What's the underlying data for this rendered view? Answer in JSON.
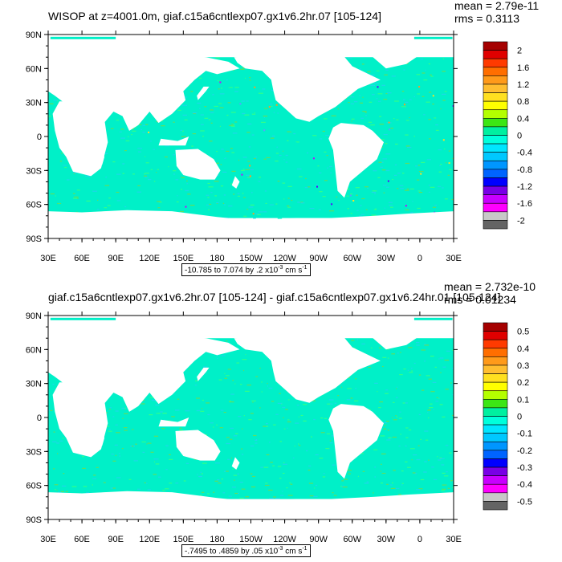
{
  "colors": {
    "land": "#ffffff",
    "ocean_fill": "#00f0c8",
    "noise": [
      "#00f0c8",
      "#5de060",
      "#1ed8e8",
      "#30ff8a"
    ],
    "accents": [
      "#5b9dff",
      "#5d00ff",
      "#ff9a1a",
      "#ffe020",
      "#c800ff"
    ]
  },
  "panels": [
    {
      "title": "WISOP at z=4001.0m, giaf.c15a6cntlexp07.gx1v6.2hr.07 [105-124]",
      "mean_text": "mean = 2.79e-11",
      "rms_text": "rms = 0.3113",
      "range_text": "-10.785 to 7.074 by .2",
      "range_unit": " cm s",
      "y_ticks": [
        "90N",
        "60N",
        "30N",
        "0",
        "30S",
        "60S",
        "90S"
      ],
      "x_ticks": [
        "30E",
        "60E",
        "90E",
        "120E",
        "150E",
        "180",
        "150W",
        "120W",
        "90W",
        "60W",
        "30W",
        "0",
        "30E"
      ],
      "colorbar": {
        "labels": [
          "2",
          "1.6",
          "1.2",
          "0.8",
          "0.4",
          "0",
          "-0.4",
          "-0.8",
          "-1.2",
          "-1.6",
          "-2"
        ],
        "colors": [
          "#a50000",
          "#e00000",
          "#ff3a00",
          "#ff6e00",
          "#ff9a1a",
          "#ffbe30",
          "#ffe020",
          "#ffff00",
          "#b4ff00",
          "#3ce614",
          "#00f0a0",
          "#00ffdc",
          "#00e6ff",
          "#00c8ff",
          "#0096ff",
          "#0064ff",
          "#0000ff",
          "#7800e6",
          "#c800ff",
          "#ff00ff",
          "#c8c8c8",
          "#646464"
        ]
      }
    },
    {
      "title": "giaf.c15a6cntlexp07.gx1v6.2hr.07 [105-124] - giaf.c15a6cntlexp07.gx1v6.24hr.01 [105-124]",
      "mean_text": "mean = 2.732e-10",
      "rms_text": "rms = 0.01234",
      "range_text": "-.7495 to .4859 by .05",
      "range_unit": " cm s",
      "y_ticks": [
        "90N",
        "60N",
        "30N",
        "0",
        "30S",
        "60S",
        "90S"
      ],
      "x_ticks": [
        "30E",
        "60E",
        "90E",
        "120E",
        "150E",
        "180",
        "150W",
        "120W",
        "90W",
        "60W",
        "30W",
        "0",
        "30E"
      ],
      "colorbar": {
        "labels": [
          "0.5",
          "0.4",
          "0.3",
          "0.2",
          "0.1",
          "0",
          "-0.1",
          "-0.2",
          "-0.3",
          "-0.4",
          "-0.5"
        ],
        "colors": [
          "#a50000",
          "#e00000",
          "#ff3a00",
          "#ff6e00",
          "#ff9a1a",
          "#ffbe30",
          "#ffe020",
          "#ffff00",
          "#b4ff00",
          "#3ce614",
          "#00f0a0",
          "#00ffdc",
          "#00e6ff",
          "#00c8ff",
          "#0096ff",
          "#0064ff",
          "#0000ff",
          "#7800e6",
          "#c800ff",
          "#ff00ff",
          "#c8c8c8",
          "#646464"
        ]
      }
    }
  ],
  "chart_data": [
    {
      "type": "heatmap",
      "title": "WISOP at z=4001.0m, giaf.c15a6cntlexp07.gx1v6.2hr.07 [105-124]",
      "annotations": [
        "mean = 2.79e-11",
        "rms = 0.3113",
        "-10.785 to 7.074 by .2 x10-3 cm s-1"
      ],
      "x_ticks": [
        "30E",
        "60E",
        "90E",
        "120E",
        "150E",
        "180",
        "150W",
        "120W",
        "90W",
        "60W",
        "30W",
        "0",
        "30E"
      ],
      "y_ticks": [
        "90N",
        "60N",
        "30N",
        "0",
        "30S",
        "60S",
        "90S"
      ],
      "xlim": [
        30,
        390
      ],
      "ylim": [
        -90,
        90
      ],
      "colorbar_levels": [
        2,
        1.6,
        1.2,
        0.8,
        0.4,
        0,
        -0.4,
        -0.8,
        -1.2,
        -1.6,
        -2
      ],
      "mean": 2.79e-11,
      "rms": 0.3113
    },
    {
      "type": "heatmap",
      "title": "giaf.c15a6cntlexp07.gx1v6.2hr.07 [105-124] - giaf.c15a6cntlexp07.gx1v6.24hr.01 [105-124]",
      "annotations": [
        "mean = 2.732e-10",
        "rms = 0.01234",
        "-.7495 to .4859 by .05 x10-3 cm s-1"
      ],
      "x_ticks": [
        "30E",
        "60E",
        "90E",
        "120E",
        "150E",
        "180",
        "150W",
        "120W",
        "90W",
        "60W",
        "30W",
        "0",
        "30E"
      ],
      "y_ticks": [
        "90N",
        "60N",
        "30N",
        "0",
        "30S",
        "60S",
        "90S"
      ],
      "xlim": [
        30,
        390
      ],
      "ylim": [
        -90,
        90
      ],
      "colorbar_levels": [
        0.5,
        0.4,
        0.3,
        0.2,
        0.1,
        0,
        -0.1,
        -0.2,
        -0.3,
        -0.4,
        -0.5
      ],
      "mean": 2.732e-10,
      "rms": 0.01234
    }
  ]
}
